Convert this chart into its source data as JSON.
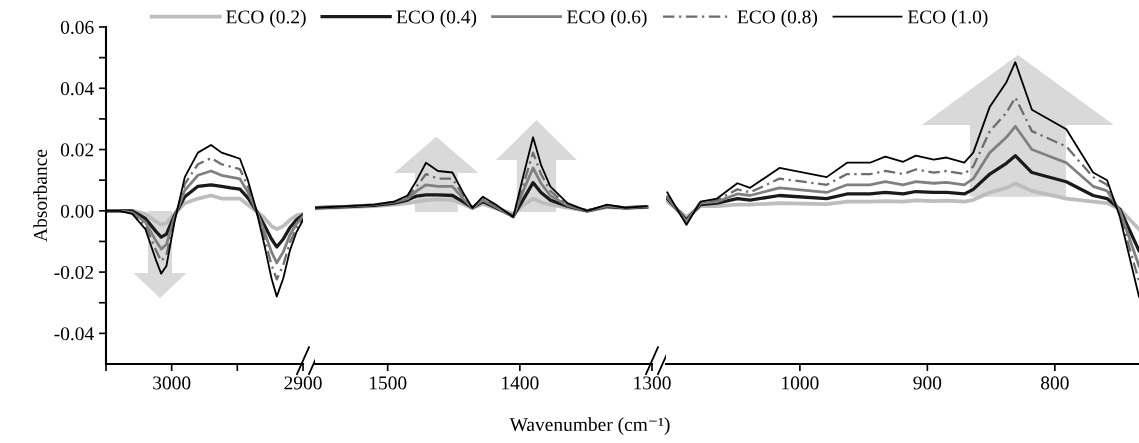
{
  "chart_data": [
    {
      "type": "line",
      "ylabel": "Absorbance",
      "legend": "top",
      "line_style": "solid",
      "grid": false,
      "tick_labels": "xy",
      "xlim": [
        3050,
        2900
      ],
      "xticks": [
        {
          "value": 3050,
          "label": null
        },
        3000,
        {
          "value": 2950,
          "label": null
        },
        2900
      ],
      "ylim": [
        -0.05,
        0.06
      ],
      "yticks": [
        {
          "value": -0.04,
          "label": "-0.04"
        },
        {
          "value": -0.03,
          "label": null
        },
        {
          "value": -0.02,
          "label": "-0.02"
        },
        {
          "value": -0.01,
          "label": null
        },
        {
          "value": 0,
          "label": "0.00"
        },
        {
          "value": 0.01,
          "label": null
        },
        {
          "value": 0.02,
          "label": "0.02"
        },
        {
          "value": 0.03,
          "label": null
        },
        {
          "value": 0.04,
          "label": "0.04"
        },
        {
          "value": 0.05,
          "label": null
        },
        {
          "value": 0.06,
          "label": "0.06"
        }
      ],
      "x": [
        3050,
        3040,
        3030,
        3020,
        3012,
        3008,
        3004,
        2998,
        2990,
        2980,
        2970,
        2962,
        2955,
        2948,
        2942,
        2936,
        2930,
        2924,
        2920,
        2915,
        2910,
        2905,
        2900
      ],
      "series": [
        {
          "name": "ECO (0.2)",
          "color": "#bdbdbd",
          "values": [
            0,
            0,
            0,
            -0.001,
            -0.0035,
            -0.0045,
            -0.004,
            -0.001,
            0.0025,
            0.004,
            0.005,
            0.004,
            0.004,
            0.004,
            0.002,
            0,
            -0.002,
            -0.005,
            -0.006,
            -0.005,
            -0.003,
            -0.0015,
            -0.001
          ]
        },
        {
          "name": "ECO (0.4)",
          "color": "#1a1a1a",
          "values": [
            0,
            0,
            0,
            -0.0025,
            -0.0067,
            -0.0086,
            -0.0076,
            -0.0017,
            0.0046,
            0.008,
            0.0085,
            0.008,
            0.0075,
            0.0071,
            0.0042,
            0.0004,
            -0.0042,
            -0.0092,
            -0.0118,
            -0.0092,
            -0.0055,
            -0.0029,
            -0.0013
          ]
        },
        {
          "name": "ECO (0.6)",
          "color": "#808080",
          "values": [
            0,
            0,
            -0.0006,
            -0.0037,
            -0.0098,
            -0.0125,
            -0.011,
            -0.0024,
            0.0067,
            0.0116,
            0.013,
            0.0116,
            0.011,
            0.0104,
            0.0061,
            0.0006,
            -0.0061,
            -0.0134,
            -0.017,
            -0.0134,
            -0.0079,
            -0.0043,
            -0.0018
          ]
        },
        {
          "name": "ECO (0.8)",
          "color": "#6e6e6e",
          "line_style": "dashed",
          "values": [
            0,
            0,
            -0.0008,
            -0.0048,
            -0.0128,
            -0.0164,
            -0.0144,
            -0.0032,
            0.0088,
            0.0152,
            0.0172,
            0.0152,
            0.0144,
            0.0136,
            0.008,
            0.0008,
            -0.008,
            -0.0176,
            -0.0224,
            -0.0176,
            -0.0104,
            -0.0056,
            -0.0024
          ]
        },
        {
          "name": "ECO (1.0)",
          "color": "#000000",
          "values": [
            0,
            0,
            -0.001,
            -0.006,
            -0.016,
            -0.0205,
            -0.018,
            -0.004,
            0.011,
            0.019,
            0.0215,
            0.019,
            0.018,
            0.017,
            0.01,
            0.001,
            -0.01,
            -0.022,
            -0.028,
            -0.022,
            -0.013,
            -0.007,
            -0.003
          ]
        }
      ]
    },
    {
      "type": "line",
      "xlabel": "Wavenumber (cm⁻¹)",
      "line_style": "solid",
      "grid": false,
      "tick_labels": "x",
      "xlim": [
        1555,
        1300
      ],
      "xticks": [
        1500,
        1400,
        1300
      ],
      "ylim": [
        -0.05,
        0.06
      ],
      "x": [
        1555,
        1530,
        1510,
        1495,
        1485,
        1478,
        1471,
        1462,
        1451,
        1443,
        1436,
        1428,
        1418,
        1405,
        1397,
        1390,
        1384,
        1377,
        1364,
        1349,
        1334,
        1320,
        1304
      ],
      "series": [
        {
          "color": "#bdbdbd",
          "values": [
            0.0008,
            0.0012,
            0.0015,
            0.002,
            0.0025,
            0.003,
            0.0035,
            0.0037,
            0.0035,
            0.0022,
            0.0008,
            0.0022,
            0.0008,
            -0.001,
            0.002,
            0.004,
            0.0028,
            0.002,
            0.001,
            0,
            0.0012,
            0.0009,
            0.0012
          ]
        },
        {
          "color": "#1a1a1a",
          "values": [
            0.001,
            0.0014,
            0.0018,
            0.0025,
            0.0035,
            0.0048,
            0.0052,
            0.0052,
            0.005,
            0.003,
            0.001,
            0.003,
            0.001,
            -0.0018,
            0.004,
            0.0092,
            0.006,
            0.0035,
            0.0015,
            0,
            0.0014,
            0.001,
            0.0013
          ]
        },
        {
          "color": "#808080",
          "values": [
            0.001,
            0.0015,
            0.002,
            0.0028,
            0.004,
            0.0065,
            0.0085,
            0.008,
            0.008,
            0.004,
            0.001,
            0.0035,
            0.0012,
            -0.002,
            0.007,
            0.014,
            0.009,
            0.005,
            0.0018,
            0,
            0.0016,
            0.001,
            0.0014
          ]
        },
        {
          "color": "#6e6e6e",
          "line_style": "dashed",
          "values": [
            0.001,
            0.0015,
            0.002,
            0.003,
            0.0045,
            0.008,
            0.012,
            0.0105,
            0.0105,
            0.005,
            0.001,
            0.004,
            0.0015,
            -0.002,
            0.009,
            0.019,
            0.012,
            0.0065,
            0.002,
            0,
            0.0018,
            0.001,
            0.0015
          ]
        },
        {
          "color": "#000000",
          "values": [
            0.001,
            0.0015,
            0.002,
            0.003,
            0.005,
            0.01,
            0.0157,
            0.013,
            0.0125,
            0.006,
            0.001,
            0.0046,
            0.002,
            -0.002,
            0.012,
            0.024,
            0.015,
            0.008,
            0.0025,
            0,
            0.002,
            0.001,
            0.0015
          ]
        }
      ]
    },
    {
      "type": "line",
      "line_style": "solid",
      "grid": false,
      "tick_labels": "x",
      "xlim": [
        1105,
        734
      ],
      "xticks": [
        1000,
        900,
        800
      ],
      "ylim": [
        -0.05,
        0.06
      ],
      "x": [
        1104,
        1089,
        1078,
        1065,
        1049,
        1039,
        1016,
        979,
        963,
        945,
        933,
        919,
        909,
        895,
        885,
        871,
        864,
        851,
        838,
        831,
        818,
        791,
        770,
        759,
        749,
        734
      ],
      "series": [
        {
          "color": "#bdbdbd",
          "values": [
            0.003,
            -0.002,
            0.0015,
            0.0015,
            0.002,
            0.002,
            0.0025,
            0.0022,
            0.003,
            0.003,
            0.0032,
            0.003,
            0.0034,
            0.0032,
            0.0033,
            0.003,
            0.0036,
            0.006,
            0.0075,
            0.0089,
            0.0065,
            0.004,
            0.003,
            0.0025,
            0.0005,
            -0.006
          ]
        },
        {
          "color": "#1a1a1a",
          "values": [
            0.004,
            -0.003,
            0.002,
            0.0025,
            0.004,
            0.0035,
            0.005,
            0.004,
            0.0055,
            0.0055,
            0.006,
            0.0055,
            0.0063,
            0.006,
            0.006,
            0.0055,
            0.007,
            0.012,
            0.0155,
            0.018,
            0.0125,
            0.0095,
            0.005,
            0.004,
            0.0005,
            -0.013
          ]
        },
        {
          "color": "#808080",
          "values": [
            0.0045,
            -0.0035,
            0.0025,
            0.003,
            0.0055,
            0.005,
            0.0075,
            0.006,
            0.0085,
            0.0085,
            0.0095,
            0.0085,
            0.0095,
            0.009,
            0.0093,
            0.0085,
            0.0105,
            0.019,
            0.024,
            0.0276,
            0.02,
            0.0157,
            0.008,
            0.0065,
            0,
            -0.018
          ]
        },
        {
          "color": "#6e6e6e",
          "line_style": "dashed",
          "values": [
            0.005,
            -0.004,
            0.003,
            0.0035,
            0.007,
            0.006,
            0.0105,
            0.0085,
            0.012,
            0.012,
            0.013,
            0.012,
            0.0135,
            0.0125,
            0.013,
            0.012,
            0.0145,
            0.026,
            0.032,
            0.037,
            0.026,
            0.021,
            0.011,
            0.0085,
            -0.001,
            -0.023
          ]
        },
        {
          "color": "#000000",
          "values": [
            0.006,
            -0.0046,
            0.003,
            0.004,
            0.009,
            0.0075,
            0.014,
            0.011,
            0.0157,
            0.0157,
            0.0177,
            0.016,
            0.018,
            0.0167,
            0.0174,
            0.0157,
            0.019,
            0.034,
            0.042,
            0.0485,
            0.033,
            0.0266,
            0.0125,
            0.01,
            -0.002,
            -0.028
          ]
        }
      ]
    }
  ]
}
